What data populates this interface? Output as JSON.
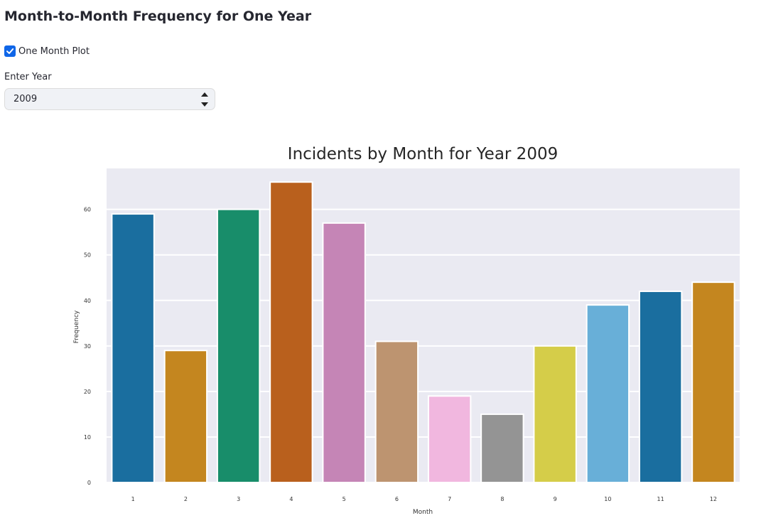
{
  "page": {
    "title": "Month-to-Month Frequency for One Year"
  },
  "controls": {
    "checkbox_label": "One Month Plot",
    "checkbox_checked": true,
    "year_label": "Enter Year",
    "year_value": "2009"
  },
  "colors": {
    "accent": "#0f66e8",
    "plot_background": "#eaeaf2",
    "grid": "#ffffff"
  },
  "chart_data": {
    "type": "bar",
    "title": "Incidents by Month for Year 2009",
    "xlabel": "Month",
    "ylabel": "Frequency",
    "categories": [
      "1",
      "2",
      "3",
      "4",
      "5",
      "6",
      "7",
      "8",
      "9",
      "10",
      "11",
      "12"
    ],
    "values": [
      59,
      29,
      60,
      66,
      57,
      31,
      19,
      15,
      30,
      39,
      42,
      44
    ],
    "colors": [
      "#1a6e9f",
      "#c4861f",
      "#188d6a",
      "#b9601d",
      "#c585b6",
      "#bd9470",
      "#f1b7df",
      "#949494",
      "#d5cd49",
      "#68afd8",
      "#1a6e9f",
      "#c4861f"
    ],
    "yticks": [
      0,
      10,
      20,
      30,
      40,
      50,
      60
    ],
    "ylim": [
      0,
      69
    ],
    "grid": true
  }
}
